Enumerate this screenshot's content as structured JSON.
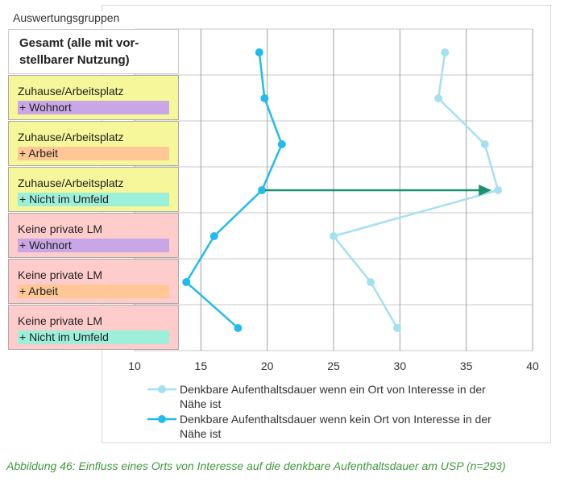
{
  "header": "Auswertungsgruppen",
  "groups": [
    {
      "line1": "Gesamt (alle mit vor-",
      "line2": "stellbarer Nutzung)",
      "style": "total"
    },
    {
      "line1": "Zuhause/Arbeitsplatz",
      "line2": "+ Wohnort",
      "bg": "#f5f79a",
      "tag": "#c9a6e6"
    },
    {
      "line1": "Zuhause/Arbeitsplatz",
      "line2": "+ Arbeit",
      "bg": "#f5f79a",
      "tag": "#ffc796"
    },
    {
      "line1": "Zuhause/Arbeitsplatz",
      "line2": "+ Nicht im Umfeld",
      "bg": "#f5f79a",
      "tag": "#9cf0d9"
    },
    {
      "line1": "Keine private LM",
      "line2": "+ Wohnort",
      "bg": "#ffcccc",
      "tag": "#c9a6e6"
    },
    {
      "line1": "Keine private LM",
      "line2": "+ Arbeit",
      "bg": "#ffcccc",
      "tag": "#ffc796"
    },
    {
      "line1": "Keine private LM",
      "line2": "+ Nicht im Umfeld",
      "bg": "#ffcccc",
      "tag": "#9cf0d9"
    }
  ],
  "chart_data": {
    "type": "line",
    "x_axis": {
      "min": 10,
      "max": 40,
      "ticks": [
        10,
        15,
        20,
        25,
        30,
        35,
        40
      ]
    },
    "grid": true,
    "series": [
      {
        "name": "Denkbare Aufenthaltsdauer wenn ein Ort von Interesse in der Nähe ist",
        "color": "#a5e0f0",
        "values": [
          33.4,
          32.9,
          36.4,
          37.4,
          25.0,
          27.8,
          29.8
        ]
      },
      {
        "name": "Denkbare Aufenthaltsdauer wenn kein Ort von Interesse in der Nähe ist",
        "color": "#22bbee",
        "values": [
          19.4,
          19.8,
          21.1,
          19.6,
          16.0,
          13.9,
          17.8
        ]
      }
    ],
    "annotation": {
      "type": "arrow",
      "row": 3,
      "from": 19.6,
      "to": 37.4,
      "color": "#1a9070"
    },
    "legend_position": "bottom"
  },
  "caption": "Abbildung 46: Einfluss eines Orts von Interesse auf die denkbare Aufenthaltsdauer am USP (n=293)"
}
